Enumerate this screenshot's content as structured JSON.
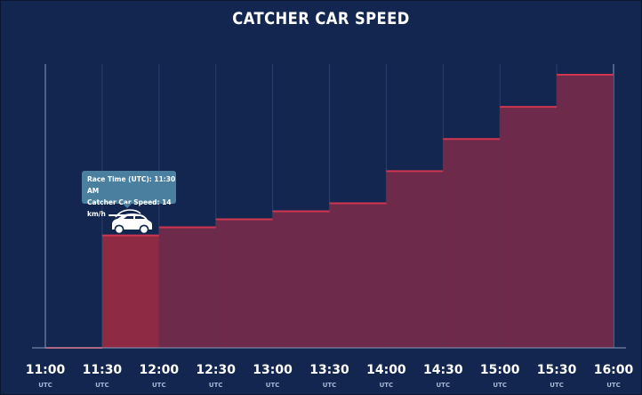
{
  "chart_data": {
    "type": "area",
    "title": "CATCHER CAR SPEED",
    "x_ticks": [
      "11:00",
      "11:30",
      "12:00",
      "12:30",
      "13:00",
      "13:30",
      "14:00",
      "14:30",
      "15:00",
      "15:30",
      "16:00"
    ],
    "x_tick_unit": "UTC",
    "series": [
      {
        "step": "post",
        "x": [
          "11:00",
          "11:30",
          "12:00",
          "12:30",
          "13:00",
          "13:30",
          "14:00",
          "14:30",
          "15:00",
          "15:30",
          "16:00"
        ],
        "y": [
          0,
          14,
          15,
          16,
          17,
          18,
          22,
          26,
          30,
          34,
          34
        ]
      }
    ],
    "ylim": [
      0,
      34
    ],
    "grid": "vertical",
    "highlight": {
      "x": "11:30",
      "y": 14
    },
    "colors": {
      "background": "#12264f",
      "fill": "#6e2a4a",
      "fill_highlight": "#8f2a45",
      "line": "#d0364f",
      "grid": "#2c3f6a",
      "tooltip": "#4a7fa0"
    }
  },
  "tooltip": {
    "race_time": "Race Time (UTC): 11:30 AM",
    "speed": "Catcher Car Speed: 14 km/h"
  }
}
